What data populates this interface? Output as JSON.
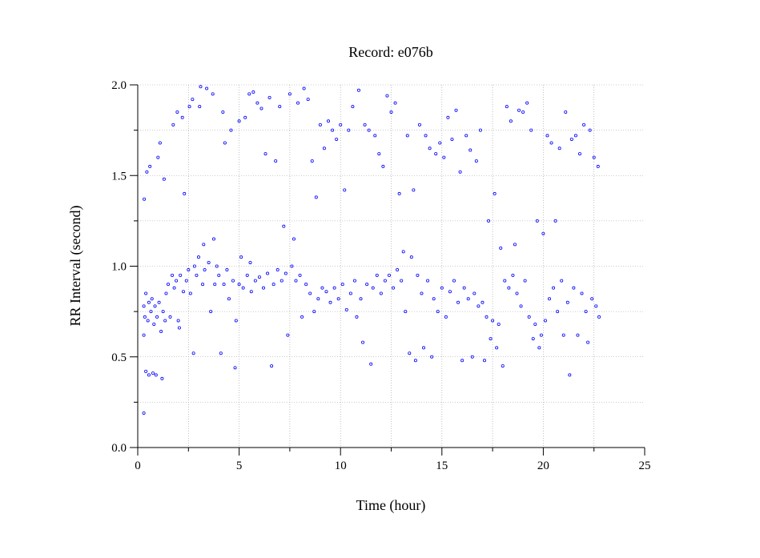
{
  "chart_data": {
    "type": "scatter",
    "title": "Record:  e076b",
    "xlabel": "Time (hour)",
    "ylabel": "RR Interval (second)",
    "xlim": [
      0,
      25
    ],
    "ylim": [
      0,
      2.0
    ],
    "x_ticks": [
      {
        "value": 0,
        "label": "0"
      },
      {
        "value": 5,
        "label": "5"
      },
      {
        "value": 10,
        "label": "10"
      },
      {
        "value": 15,
        "label": "15"
      },
      {
        "value": 20,
        "label": "20"
      },
      {
        "value": 25,
        "label": "25"
      }
    ],
    "y_ticks": [
      {
        "value": 0.0,
        "label": "0.0"
      },
      {
        "value": 0.5,
        "label": "0.5"
      },
      {
        "value": 1.0,
        "label": "1.0"
      },
      {
        "value": 1.5,
        "label": "1.5"
      },
      {
        "value": 2.0,
        "label": "2.0"
      }
    ],
    "grid": true,
    "marker_color": "#0000ff",
    "series": [
      {
        "points": [
          [
            0.3,
            0.78
          ],
          [
            0.3,
            0.62
          ],
          [
            0.3,
            0.19
          ],
          [
            0.32,
            1.37
          ],
          [
            0.35,
            0.72
          ],
          [
            0.4,
            0.85
          ],
          [
            0.4,
            0.42
          ],
          [
            0.45,
            1.52
          ],
          [
            0.5,
            0.7
          ],
          [
            0.55,
            0.8
          ],
          [
            0.55,
            0.4
          ],
          [
            0.6,
            1.55
          ],
          [
            0.65,
            0.75
          ],
          [
            0.7,
            0.82
          ],
          [
            0.75,
            0.41
          ],
          [
            0.8,
            0.68
          ],
          [
            0.85,
            0.78
          ],
          [
            0.9,
            0.4
          ],
          [
            0.95,
            0.72
          ],
          [
            1.0,
            1.6
          ],
          [
            1.05,
            0.8
          ],
          [
            1.1,
            1.68
          ],
          [
            1.15,
            0.64
          ],
          [
            1.2,
            0.38
          ],
          [
            1.25,
            0.75
          ],
          [
            1.3,
            1.48
          ],
          [
            1.35,
            0.7
          ],
          [
            1.4,
            0.85
          ],
          [
            1.5,
            0.9
          ],
          [
            1.6,
            0.72
          ],
          [
            1.7,
            0.95
          ],
          [
            1.75,
            1.78
          ],
          [
            1.8,
            0.88
          ],
          [
            1.9,
            0.92
          ],
          [
            1.95,
            1.85
          ],
          [
            2.0,
            0.7
          ],
          [
            2.05,
            0.66
          ],
          [
            2.1,
            0.95
          ],
          [
            2.2,
            1.82
          ],
          [
            2.25,
            0.86
          ],
          [
            2.3,
            1.4
          ],
          [
            2.4,
            0.92
          ],
          [
            2.5,
            0.98
          ],
          [
            2.55,
            1.88
          ],
          [
            2.6,
            0.85
          ],
          [
            2.7,
            1.92
          ],
          [
            2.75,
            0.52
          ],
          [
            2.8,
            1.0
          ],
          [
            2.9,
            0.95
          ],
          [
            3.0,
            1.05
          ],
          [
            3.05,
            1.88
          ],
          [
            3.1,
            1.99
          ],
          [
            3.2,
            0.9
          ],
          [
            3.25,
            1.12
          ],
          [
            3.3,
            0.98
          ],
          [
            3.4,
            1.98
          ],
          [
            3.5,
            1.02
          ],
          [
            3.6,
            0.75
          ],
          [
            3.7,
            1.95
          ],
          [
            3.75,
            1.15
          ],
          [
            3.8,
            0.9
          ],
          [
            3.9,
            1.0
          ],
          [
            4.0,
            0.95
          ],
          [
            4.1,
            0.52
          ],
          [
            4.2,
            1.85
          ],
          [
            4.25,
            0.9
          ],
          [
            4.3,
            1.68
          ],
          [
            4.4,
            0.98
          ],
          [
            4.5,
            0.82
          ],
          [
            4.6,
            1.75
          ],
          [
            4.7,
            0.92
          ],
          [
            4.8,
            0.44
          ],
          [
            4.85,
            0.7
          ],
          [
            5.0,
            1.8
          ],
          [
            5.0,
            0.9
          ],
          [
            5.1,
            1.05
          ],
          [
            5.2,
            0.88
          ],
          [
            5.3,
            1.82
          ],
          [
            5.4,
            0.95
          ],
          [
            5.5,
            1.95
          ],
          [
            5.55,
            1.02
          ],
          [
            5.6,
            0.86
          ],
          [
            5.7,
            1.96
          ],
          [
            5.8,
            0.92
          ],
          [
            5.9,
            1.9
          ],
          [
            6.0,
            0.94
          ],
          [
            6.1,
            1.87
          ],
          [
            6.2,
            0.88
          ],
          [
            6.3,
            1.62
          ],
          [
            6.4,
            0.96
          ],
          [
            6.5,
            1.93
          ],
          [
            6.6,
            0.45
          ],
          [
            6.7,
            0.9
          ],
          [
            6.8,
            1.58
          ],
          [
            6.9,
            0.98
          ],
          [
            7.0,
            1.88
          ],
          [
            7.1,
            0.92
          ],
          [
            7.2,
            1.22
          ],
          [
            7.3,
            0.96
          ],
          [
            7.4,
            0.62
          ],
          [
            7.5,
            1.95
          ],
          [
            7.6,
            1.0
          ],
          [
            7.7,
            1.15
          ],
          [
            7.8,
            0.92
          ],
          [
            7.9,
            1.9
          ],
          [
            8.0,
            0.95
          ],
          [
            8.1,
            0.72
          ],
          [
            8.2,
            1.98
          ],
          [
            8.3,
            0.9
          ],
          [
            8.4,
            1.92
          ],
          [
            8.5,
            0.85
          ],
          [
            8.6,
            1.58
          ],
          [
            8.7,
            0.75
          ],
          [
            8.8,
            1.38
          ],
          [
            8.9,
            0.82
          ],
          [
            9.0,
            1.78
          ],
          [
            9.1,
            0.88
          ],
          [
            9.2,
            1.65
          ],
          [
            9.3,
            0.86
          ],
          [
            9.4,
            1.8
          ],
          [
            9.5,
            0.8
          ],
          [
            9.6,
            1.75
          ],
          [
            9.7,
            0.88
          ],
          [
            9.8,
            1.7
          ],
          [
            9.9,
            0.82
          ],
          [
            10.0,
            1.78
          ],
          [
            10.1,
            0.9
          ],
          [
            10.2,
            1.42
          ],
          [
            10.3,
            0.76
          ],
          [
            10.4,
            1.75
          ],
          [
            10.5,
            0.85
          ],
          [
            10.6,
            1.88
          ],
          [
            10.7,
            0.92
          ],
          [
            10.8,
            0.72
          ],
          [
            10.9,
            1.97
          ],
          [
            11.0,
            0.82
          ],
          [
            11.1,
            0.58
          ],
          [
            11.2,
            1.78
          ],
          [
            11.3,
            0.9
          ],
          [
            11.4,
            1.75
          ],
          [
            11.5,
            0.46
          ],
          [
            11.6,
            0.88
          ],
          [
            11.7,
            1.72
          ],
          [
            11.8,
            0.95
          ],
          [
            11.9,
            1.62
          ],
          [
            12.0,
            0.85
          ],
          [
            12.1,
            1.55
          ],
          [
            12.2,
            0.92
          ],
          [
            12.3,
            1.94
          ],
          [
            12.4,
            0.95
          ],
          [
            12.5,
            1.85
          ],
          [
            12.6,
            0.88
          ],
          [
            12.7,
            1.9
          ],
          [
            12.8,
            0.98
          ],
          [
            12.9,
            1.4
          ],
          [
            13.0,
            0.92
          ],
          [
            13.1,
            1.08
          ],
          [
            13.2,
            0.75
          ],
          [
            13.3,
            1.72
          ],
          [
            13.4,
            0.52
          ],
          [
            13.5,
            1.05
          ],
          [
            13.6,
            1.42
          ],
          [
            13.7,
            0.48
          ],
          [
            13.8,
            0.95
          ],
          [
            13.9,
            1.78
          ],
          [
            14.0,
            0.85
          ],
          [
            14.1,
            0.55
          ],
          [
            14.2,
            1.72
          ],
          [
            14.3,
            0.92
          ],
          [
            14.4,
            1.65
          ],
          [
            14.5,
            0.5
          ],
          [
            14.6,
            0.82
          ],
          [
            14.7,
            1.62
          ],
          [
            14.8,
            0.75
          ],
          [
            14.9,
            1.68
          ],
          [
            15.0,
            0.88
          ],
          [
            15.1,
            1.6
          ],
          [
            15.2,
            0.72
          ],
          [
            15.3,
            1.82
          ],
          [
            15.4,
            0.86
          ],
          [
            15.5,
            1.7
          ],
          [
            15.6,
            0.92
          ],
          [
            15.7,
            1.86
          ],
          [
            15.8,
            0.8
          ],
          [
            15.9,
            1.52
          ],
          [
            16.0,
            0.48
          ],
          [
            16.1,
            0.88
          ],
          [
            16.2,
            1.72
          ],
          [
            16.3,
            0.82
          ],
          [
            16.4,
            1.64
          ],
          [
            16.5,
            0.5
          ],
          [
            16.6,
            0.85
          ],
          [
            16.7,
            1.58
          ],
          [
            16.8,
            0.78
          ],
          [
            16.9,
            1.75
          ],
          [
            17.0,
            0.8
          ],
          [
            17.1,
            0.48
          ],
          [
            17.2,
            0.72
          ],
          [
            17.3,
            1.25
          ],
          [
            17.4,
            0.6
          ],
          [
            17.5,
            0.7
          ],
          [
            17.6,
            1.4
          ],
          [
            17.7,
            0.55
          ],
          [
            17.8,
            0.68
          ],
          [
            17.9,
            1.1
          ],
          [
            18.0,
            0.45
          ],
          [
            18.1,
            0.92
          ],
          [
            18.2,
            1.88
          ],
          [
            18.3,
            0.88
          ],
          [
            18.4,
            1.8
          ],
          [
            18.5,
            0.95
          ],
          [
            18.6,
            1.12
          ],
          [
            18.7,
            0.85
          ],
          [
            18.8,
            1.86
          ],
          [
            18.9,
            0.78
          ],
          [
            19.0,
            1.85
          ],
          [
            19.1,
            0.92
          ],
          [
            19.2,
            1.9
          ],
          [
            19.3,
            0.72
          ],
          [
            19.4,
            1.75
          ],
          [
            19.5,
            0.6
          ],
          [
            19.6,
            0.68
          ],
          [
            19.7,
            1.25
          ],
          [
            19.8,
            0.55
          ],
          [
            19.9,
            0.62
          ],
          [
            20.0,
            1.18
          ],
          [
            20.1,
            0.7
          ],
          [
            20.2,
            1.72
          ],
          [
            20.3,
            0.82
          ],
          [
            20.4,
            1.68
          ],
          [
            20.5,
            0.88
          ],
          [
            20.6,
            1.25
          ],
          [
            20.7,
            0.75
          ],
          [
            20.8,
            1.65
          ],
          [
            20.9,
            0.92
          ],
          [
            21.0,
            0.62
          ],
          [
            21.1,
            1.85
          ],
          [
            21.2,
            0.8
          ],
          [
            21.3,
            0.4
          ],
          [
            21.4,
            1.7
          ],
          [
            21.5,
            0.88
          ],
          [
            21.6,
            1.72
          ],
          [
            21.7,
            0.62
          ],
          [
            21.8,
            1.62
          ],
          [
            21.9,
            0.85
          ],
          [
            22.0,
            1.78
          ],
          [
            22.1,
            0.75
          ],
          [
            22.2,
            0.58
          ],
          [
            22.3,
            1.75
          ],
          [
            22.4,
            0.82
          ],
          [
            22.5,
            1.6
          ],
          [
            22.6,
            0.78
          ],
          [
            22.7,
            1.55
          ],
          [
            22.75,
            0.72
          ]
        ]
      }
    ]
  }
}
